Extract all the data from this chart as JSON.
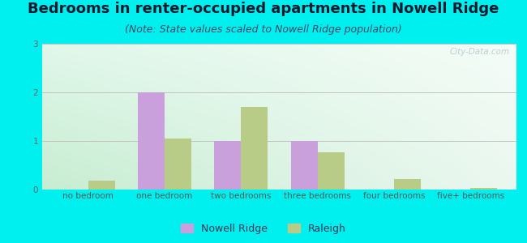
{
  "title": "Bedrooms in renter-occupied apartments in Nowell Ridge",
  "subtitle": "(Note: State values scaled to Nowell Ridge population)",
  "categories": [
    "no bedroom",
    "one bedroom",
    "two bedrooms",
    "three bedrooms",
    "four bedrooms",
    "five+ bedrooms"
  ],
  "nowell_ridge": [
    0,
    2.0,
    1.0,
    1.0,
    0,
    0
  ],
  "raleigh": [
    0.18,
    1.05,
    1.7,
    0.77,
    0.22,
    0.03
  ],
  "nowell_color": "#c9a0dc",
  "raleigh_color": "#b8cc88",
  "ylim": [
    0,
    3
  ],
  "yticks": [
    0,
    1,
    2,
    3
  ],
  "bar_width": 0.35,
  "outer_background": "#00f0f0",
  "watermark": "City-Data.com",
  "legend_nowell": "Nowell Ridge",
  "legend_raleigh": "Raleigh",
  "title_fontsize": 13,
  "subtitle_fontsize": 9,
  "tick_fontsize": 7.5,
  "legend_fontsize": 9,
  "gradient_topleft": [
    0.88,
    0.97,
    0.92
  ],
  "gradient_topright": [
    0.96,
    0.99,
    0.97
  ],
  "gradient_bottomleft": [
    0.78,
    0.93,
    0.82
  ],
  "gradient_bottomright": [
    0.92,
    0.97,
    0.94
  ]
}
